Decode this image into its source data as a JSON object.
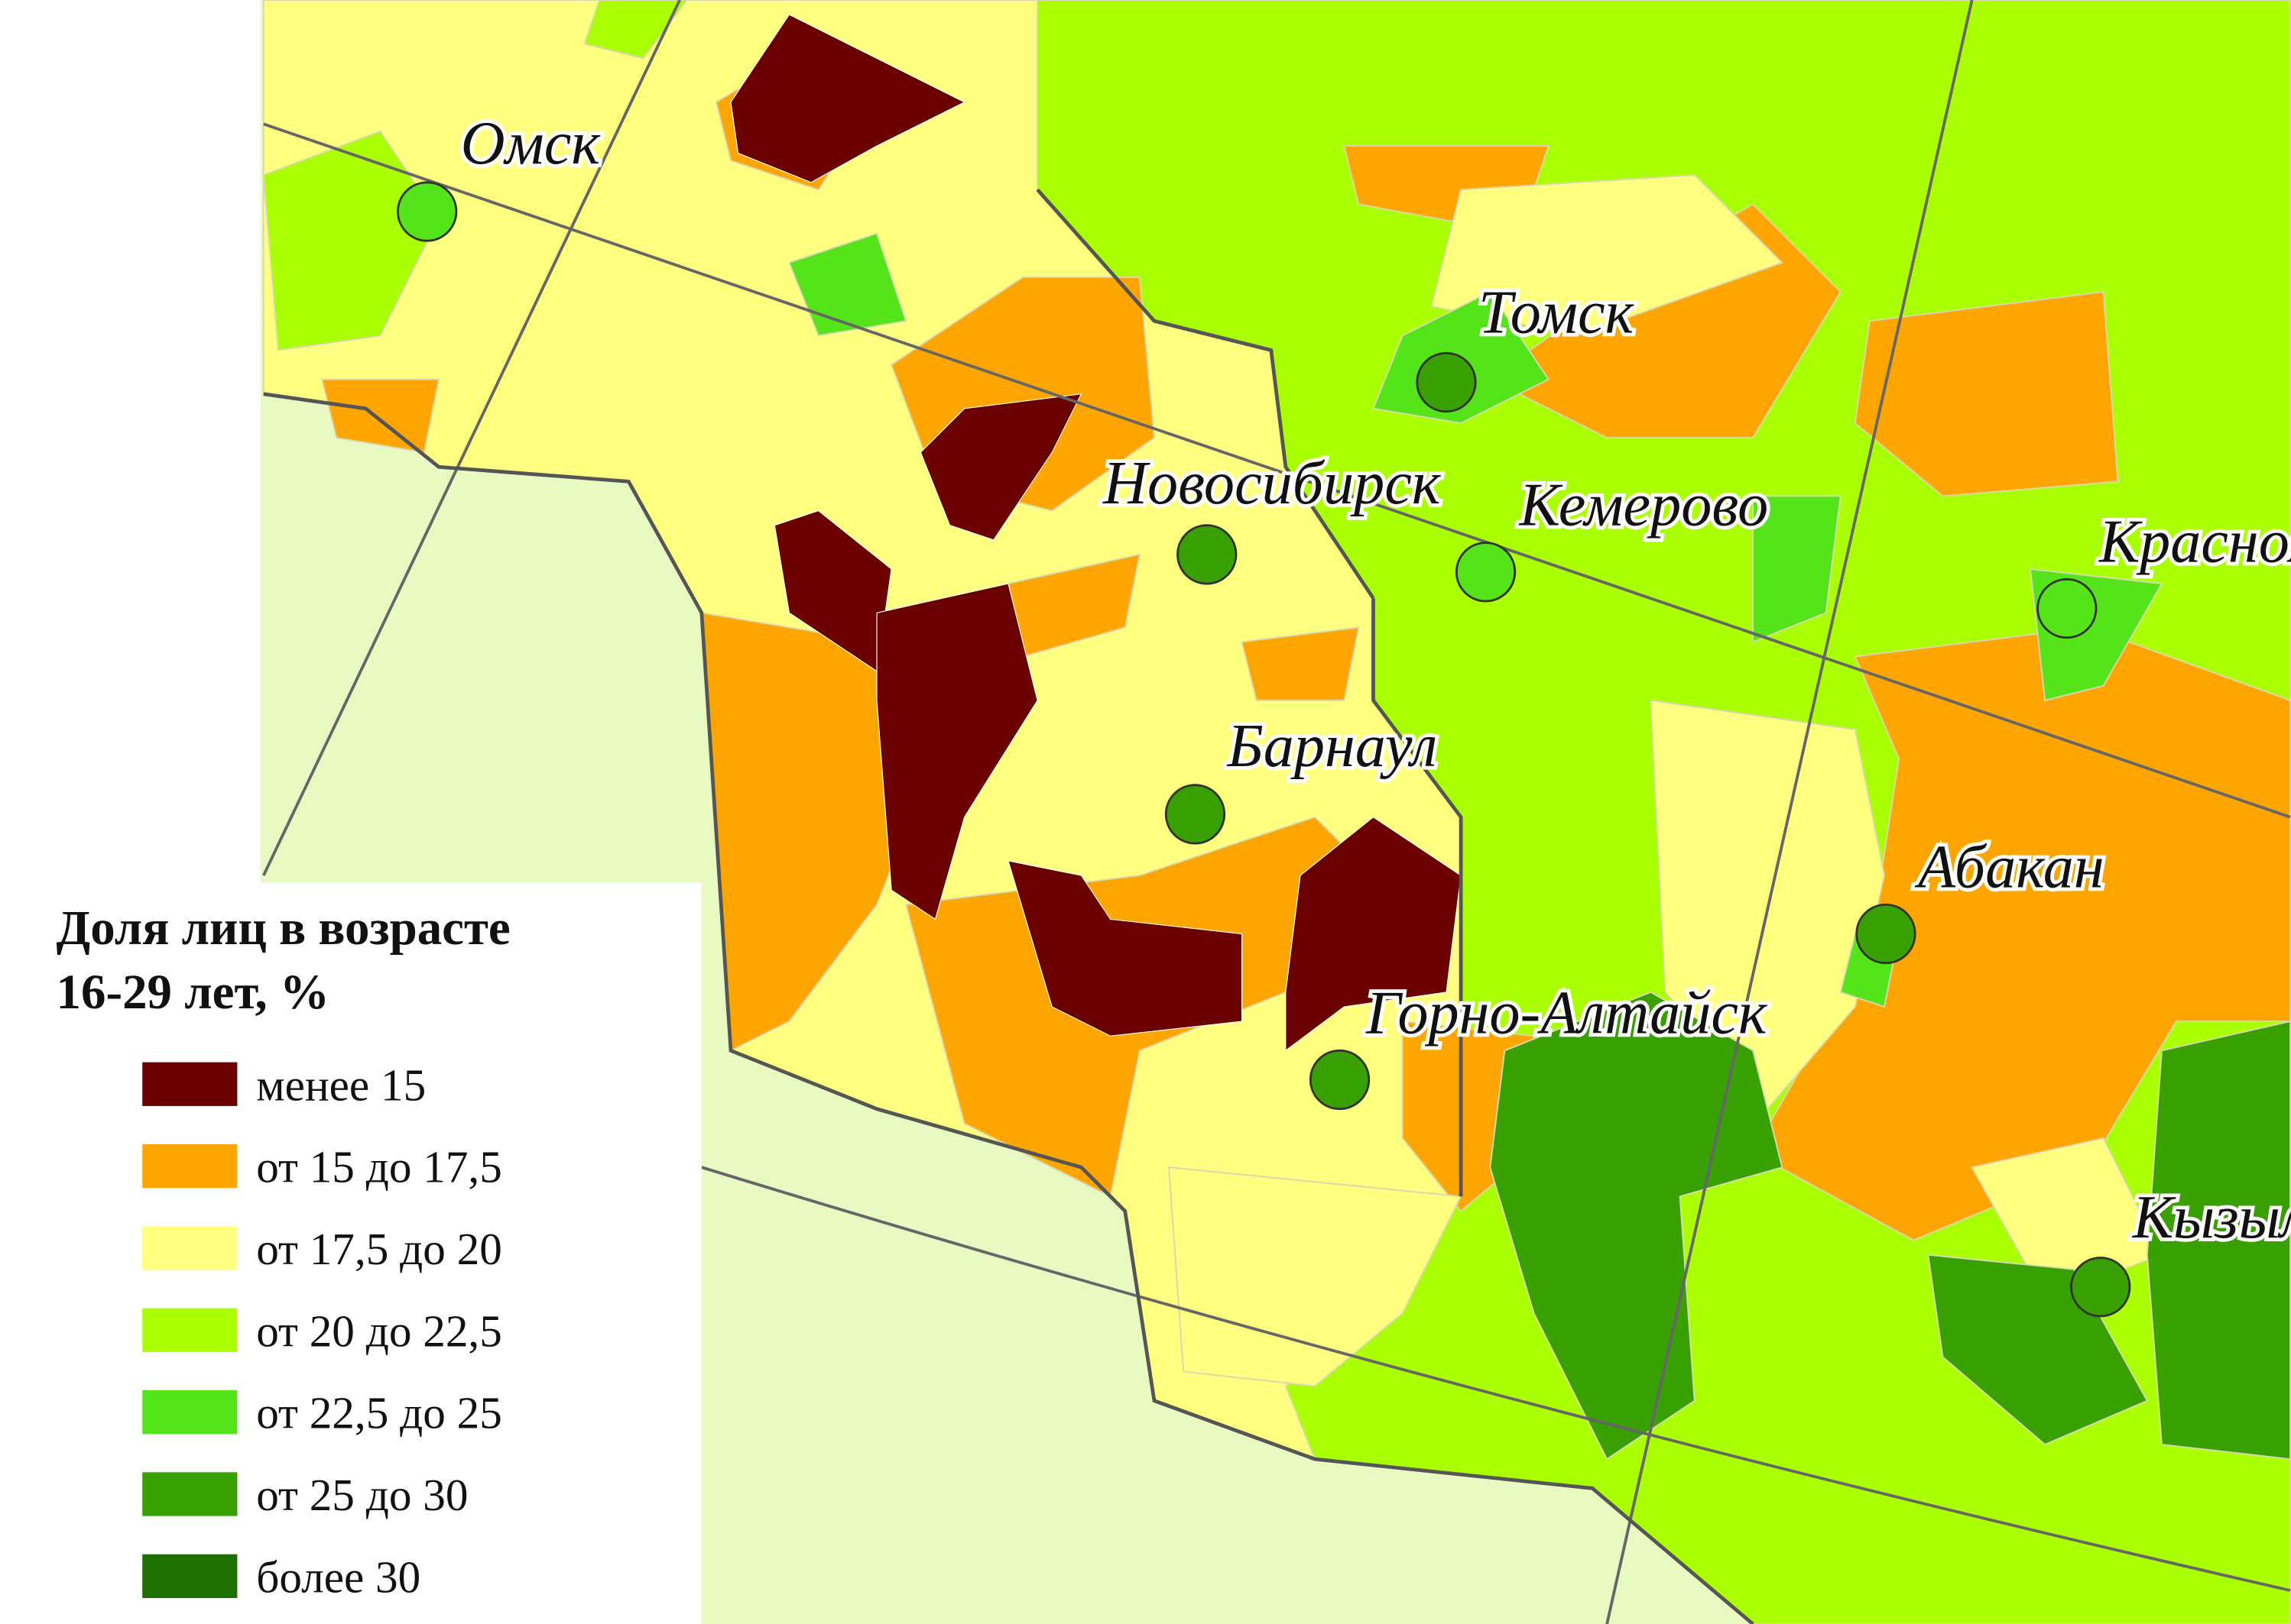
{
  "legend": {
    "title_lines": [
      "Доля лиц в возрасте",
      "16-29 лет, %"
    ],
    "items": [
      {
        "label": "менее 15",
        "color": "#6b0000"
      },
      {
        "label": "от 15 до 17,5",
        "color": "#ffa500"
      },
      {
        "label": "от 17,5 до 20",
        "color": "#ffff80"
      },
      {
        "label": "от 20 до 22,5",
        "color": "#aaff00"
      },
      {
        "label": "от 22,5 до 25",
        "color": "#55e41a"
      },
      {
        "label": "от 25 до 30",
        "color": "#38a000"
      },
      {
        "label": "более 30",
        "color": "#1e7000"
      }
    ]
  },
  "cities": [
    {
      "name": "Омск",
      "color": "#55e41a"
    },
    {
      "name": "Томск",
      "color": "#38a000"
    },
    {
      "name": "Новосибирск",
      "color": "#38a000"
    },
    {
      "name": "Кемерово",
      "color": "#55e41a"
    },
    {
      "name": "Красноярск",
      "color": "#55e41a"
    },
    {
      "name": "Барнаул",
      "color": "#38a000"
    },
    {
      "name": "Абакан",
      "color": "#38a000"
    },
    {
      "name": "Горно-Алтайск",
      "color": "#38a000"
    },
    {
      "name": "Кызыл",
      "color": "#38a000"
    }
  ]
}
